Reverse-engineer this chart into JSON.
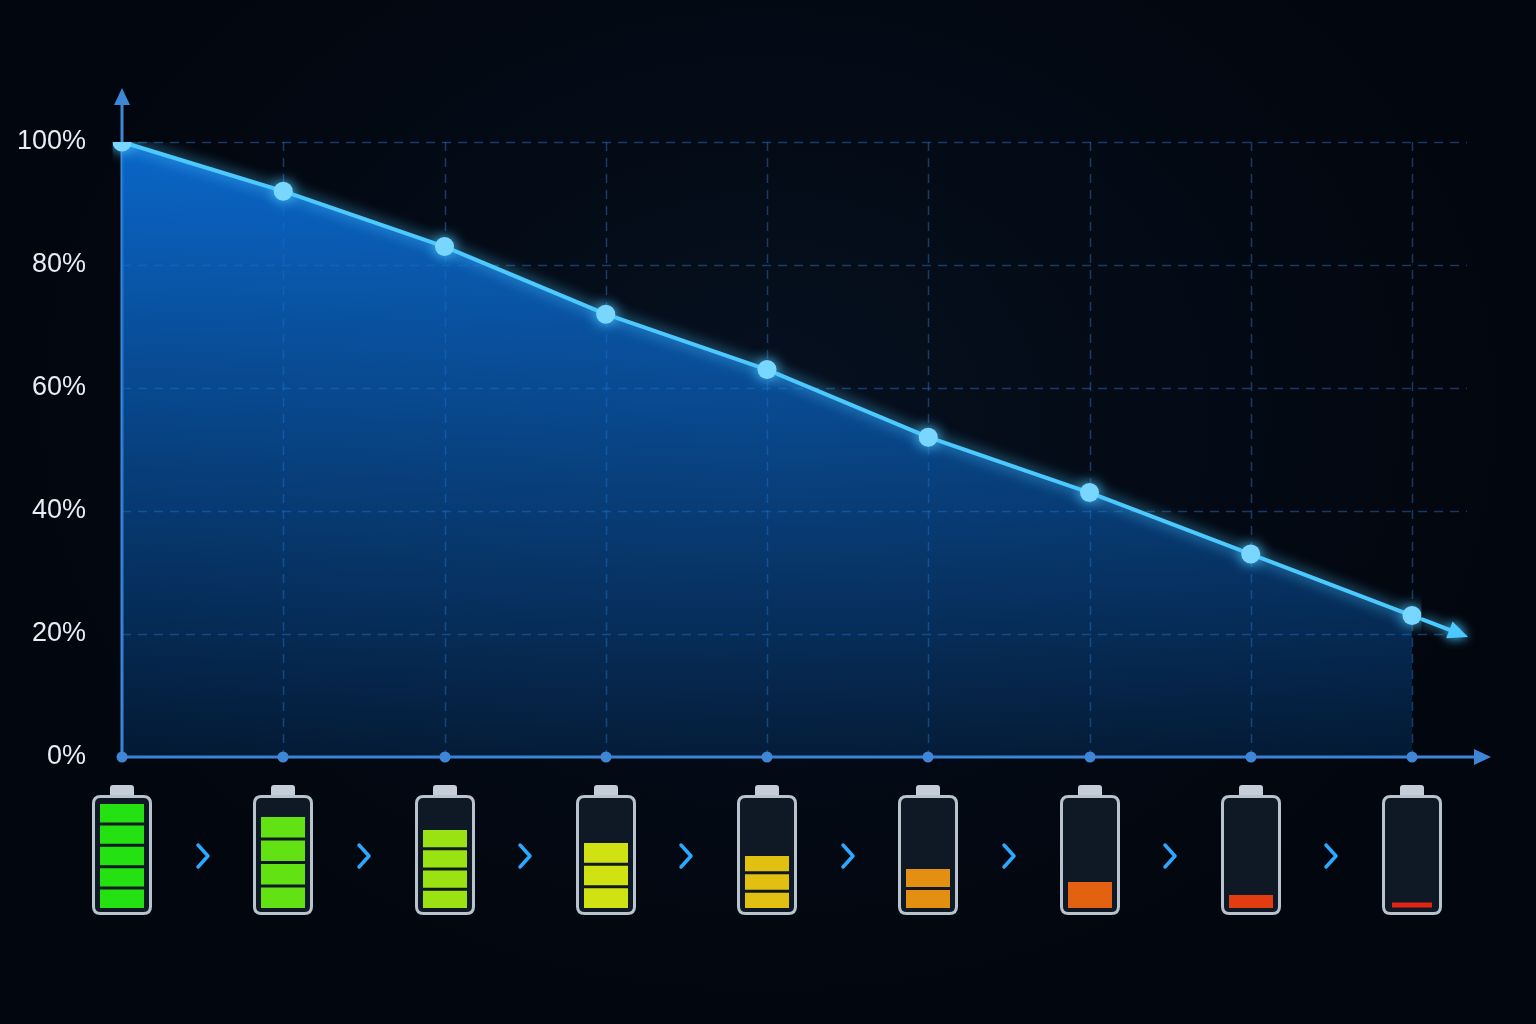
{
  "chart_data": {
    "type": "area",
    "categories": [
      null,
      null,
      null,
      null,
      null,
      null,
      null,
      null,
      null
    ],
    "values": [
      100,
      92,
      83,
      72,
      63,
      52,
      43,
      33,
      23
    ],
    "color": "#4cc9ff",
    "ylim": [
      0,
      100
    ],
    "yticks": [
      {
        "value": 0,
        "label": "0%"
      },
      {
        "value": 20,
        "label": "20%"
      },
      {
        "value": 40,
        "label": "40%"
      },
      {
        "value": 60,
        "label": "60%"
      },
      {
        "value": 80,
        "label": "80%"
      },
      {
        "value": 100,
        "label": "100%"
      }
    ],
    "grid": true,
    "legend": false,
    "tick_labels": "y",
    "marker": "circle",
    "line_style": "solid"
  }
}
